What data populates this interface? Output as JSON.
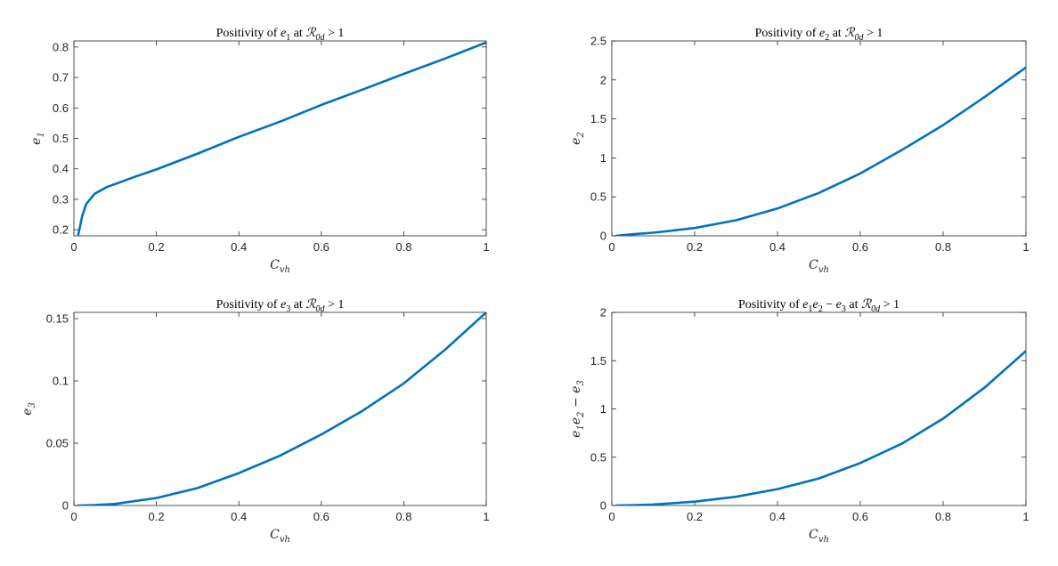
{
  "figure": {
    "series_color": "#0072bd",
    "axis_color": "#262626"
  },
  "chart_data": [
    {
      "type": "line",
      "title": {
        "pre": "Positivity of ",
        "vars": [
          [
            "e",
            "1"
          ]
        ],
        "post": " at ",
        "rlabel": [
          "ℛ",
          "0d"
        ],
        "cond": " > 1"
      },
      "xlabel": [
        "C",
        "vh"
      ],
      "ylabel": [
        [
          "e",
          "1"
        ]
      ],
      "xlim": [
        0,
        1
      ],
      "ylim": [
        0.18,
        0.82
      ],
      "xticks": [
        0,
        0.2,
        0.4,
        0.6,
        0.8,
        1
      ],
      "xtick_labels": [
        "0",
        "0.2",
        "0.4",
        "0.6",
        "0.8",
        "1"
      ],
      "yticks": [
        0.2,
        0.3,
        0.4,
        0.5,
        0.6,
        0.7,
        0.8
      ],
      "ytick_labels": [
        "0.2",
        "0.3",
        "0.4",
        "0.5",
        "0.6",
        "0.7",
        "0.8"
      ],
      "grid": false,
      "series": [
        {
          "x": [
            0.01,
            0.02,
            0.03,
            0.05,
            0.08,
            0.1,
            0.15,
            0.2,
            0.3,
            0.4,
            0.5,
            0.6,
            0.7,
            0.8,
            0.9,
            1.0
          ],
          "y": [
            0.18,
            0.245,
            0.285,
            0.318,
            0.34,
            0.35,
            0.375,
            0.398,
            0.45,
            0.505,
            0.555,
            0.61,
            0.66,
            0.712,
            0.762,
            0.815
          ]
        }
      ]
    },
    {
      "type": "line",
      "title": {
        "pre": "Positivity of ",
        "vars": [
          [
            "e",
            "2"
          ]
        ],
        "post": " at ",
        "rlabel": [
          "ℛ",
          "0d"
        ],
        "cond": " > 1"
      },
      "xlabel": [
        "C",
        "vh"
      ],
      "ylabel": [
        [
          "e",
          "2"
        ]
      ],
      "xlim": [
        0,
        1
      ],
      "ylim": [
        0,
        2.5
      ],
      "xticks": [
        0,
        0.2,
        0.4,
        0.6,
        0.8,
        1
      ],
      "xtick_labels": [
        "0",
        "0.2",
        "0.4",
        "0.6",
        "0.8",
        "1"
      ],
      "yticks": [
        0,
        0.5,
        1,
        1.5,
        2,
        2.5
      ],
      "ytick_labels": [
        "0",
        "0.5",
        "1",
        "1.5",
        "2",
        "2.5"
      ],
      "grid": false,
      "series": [
        {
          "x": [
            0.01,
            0.05,
            0.1,
            0.2,
            0.3,
            0.4,
            0.5,
            0.6,
            0.7,
            0.8,
            0.9,
            1.0
          ],
          "y": [
            0.0,
            0.02,
            0.04,
            0.1,
            0.2,
            0.35,
            0.55,
            0.8,
            1.1,
            1.42,
            1.78,
            2.16
          ]
        }
      ]
    },
    {
      "type": "line",
      "title": {
        "pre": "Positivity of ",
        "vars": [
          [
            "e",
            "3"
          ]
        ],
        "post": " at ",
        "rlabel": [
          "ℛ",
          "0d"
        ],
        "cond": " > 1"
      },
      "xlabel": [
        "C",
        "vh"
      ],
      "ylabel": [
        [
          "e",
          "3"
        ]
      ],
      "xlim": [
        0,
        1
      ],
      "ylim": [
        0,
        0.155
      ],
      "xticks": [
        0,
        0.2,
        0.4,
        0.6,
        0.8,
        1
      ],
      "xtick_labels": [
        "0",
        "0.2",
        "0.4",
        "0.6",
        "0.8",
        "1"
      ],
      "yticks": [
        0,
        0.05,
        0.1,
        0.15
      ],
      "ytick_labels": [
        "0",
        "0.05",
        "0.1",
        "0.15"
      ],
      "grid": false,
      "series": [
        {
          "x": [
            0.01,
            0.05,
            0.1,
            0.2,
            0.3,
            0.4,
            0.5,
            0.6,
            0.7,
            0.8,
            0.9,
            1.0
          ],
          "y": [
            0.0,
            0.0003,
            0.0013,
            0.006,
            0.014,
            0.026,
            0.04,
            0.057,
            0.076,
            0.098,
            0.125,
            0.155
          ]
        }
      ]
    },
    {
      "type": "line",
      "title": {
        "pre": "Positivity of ",
        "vars": [
          [
            "e",
            "1"
          ],
          [
            "e",
            "2"
          ]
        ],
        "minus": [
          [
            "e",
            "3"
          ]
        ],
        "post": " at ",
        "rlabel": [
          "ℛ",
          "0d"
        ],
        "cond": " > 1"
      },
      "xlabel": [
        "C",
        "vh"
      ],
      "ylabel": [
        [
          "e",
          "1"
        ],
        [
          "e",
          "2"
        ],
        [
          "e",
          "3"
        ]
      ],
      "xlim": [
        0,
        1
      ],
      "ylim": [
        0,
        2
      ],
      "xticks": [
        0,
        0.2,
        0.4,
        0.6,
        0.8,
        1
      ],
      "xtick_labels": [
        "0",
        "0.2",
        "0.4",
        "0.6",
        "0.8",
        "1"
      ],
      "yticks": [
        0,
        0.5,
        1,
        1.5,
        2
      ],
      "ytick_labels": [
        "0",
        "0.5",
        "1",
        "1.5",
        "2"
      ],
      "grid": false,
      "series": [
        {
          "x": [
            0.01,
            0.05,
            0.1,
            0.2,
            0.3,
            0.4,
            0.5,
            0.6,
            0.7,
            0.8,
            0.9,
            1.0
          ],
          "y": [
            0.0,
            0.003,
            0.01,
            0.04,
            0.09,
            0.17,
            0.28,
            0.44,
            0.64,
            0.9,
            1.22,
            1.6
          ]
        }
      ]
    }
  ]
}
